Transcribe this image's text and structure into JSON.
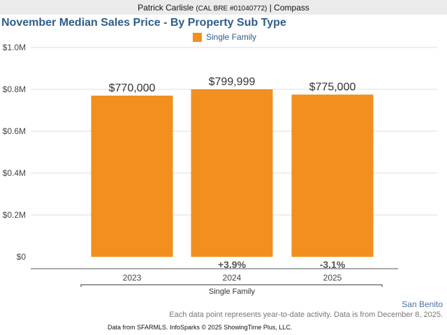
{
  "agent": {
    "name": "Patrick Carlisle",
    "license": "(CAL BRE #01040772)",
    "brokerage": "| Compass"
  },
  "colors": {
    "bar": "#f28f1f",
    "title": "#2e5d8a"
  },
  "chart_data": {
    "type": "bar",
    "title": "November Median Sales Price - By Property Sub Type",
    "legend": [
      "Single Family"
    ],
    "categories": [
      "2023",
      "2024",
      "2025"
    ],
    "series": [
      {
        "name": "Single Family",
        "values": [
          770000,
          799999,
          775000
        ]
      }
    ],
    "value_labels": [
      "$770,000",
      "$799,999",
      "$775,000"
    ],
    "change_labels": [
      "",
      "+3.9%",
      "-3.1%"
    ],
    "y_ticks": [
      {
        "value": 0,
        "label": "$0"
      },
      {
        "value": 200000,
        "label": "$0.2M"
      },
      {
        "value": 400000,
        "label": "$0.4M"
      },
      {
        "value": 600000,
        "label": "$0.6M"
      },
      {
        "value": 800000,
        "label": "$0.8M"
      },
      {
        "value": 1000000,
        "label": "$1.0M"
      }
    ],
    "ylim": [
      0,
      1000000
    ],
    "group_label": "Single Family",
    "grid": true
  },
  "footer": {
    "region": "San Benito",
    "note": "Each data point represents year-to-date activity. Data is from December 8, 2025.",
    "source": "Data from SFARMLS. InfoSparks © 2025 ShowingTime Plus, LLC."
  }
}
